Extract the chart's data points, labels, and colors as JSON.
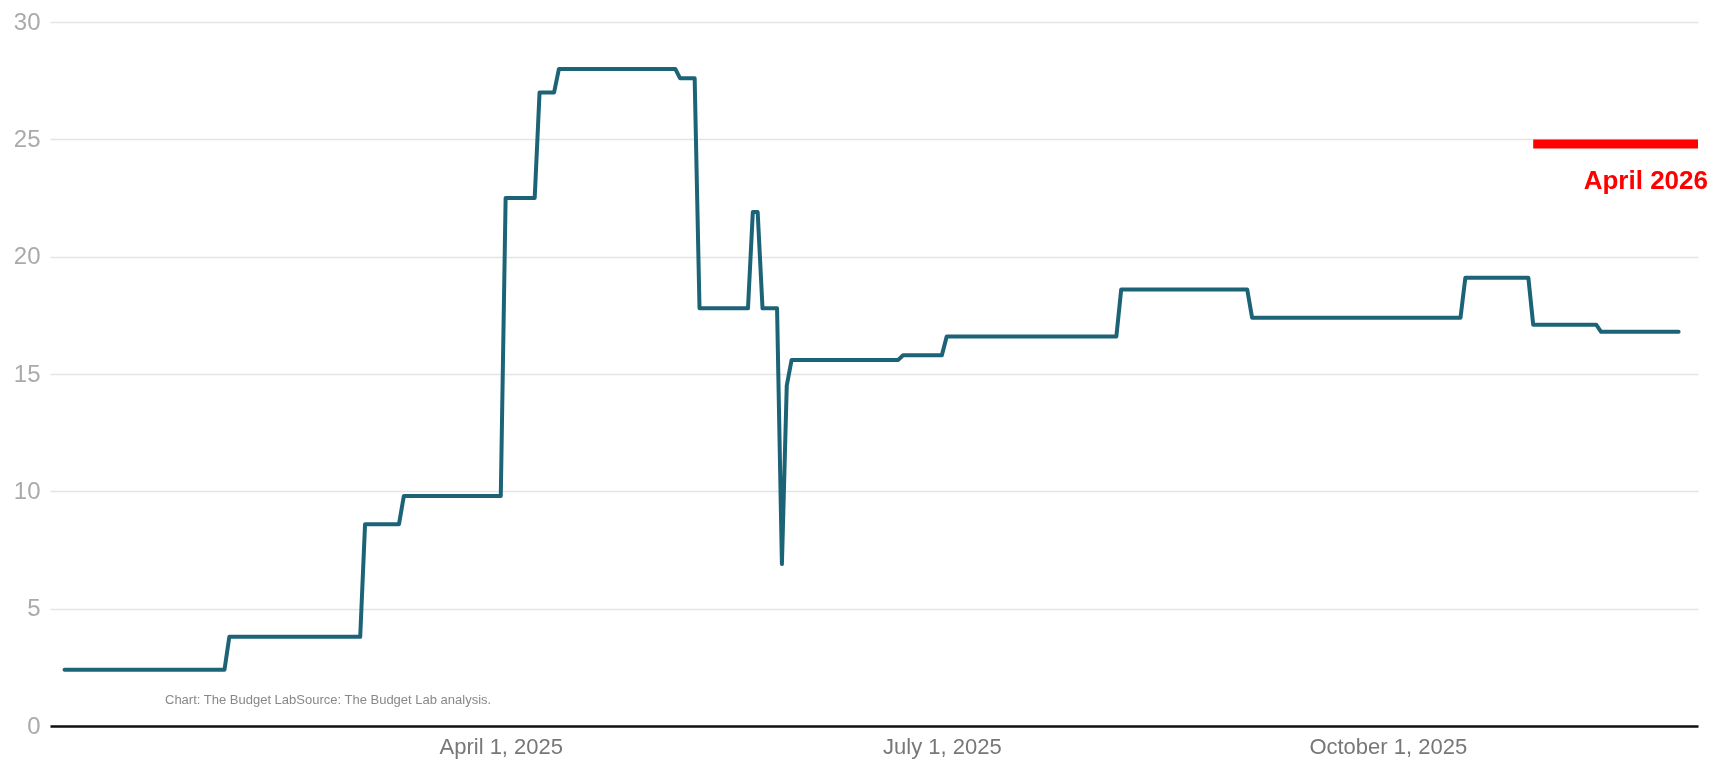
{
  "chart_data": {
    "type": "line",
    "x": [
      "2025-01-01",
      "2025-02-03",
      "2025-02-04",
      "2025-03-03",
      "2025-03-04",
      "2025-03-11",
      "2025-03-12",
      "2025-04-01",
      "2025-04-02",
      "2025-04-08",
      "2025-04-09",
      "2025-04-12",
      "2025-04-13",
      "2025-05-07",
      "2025-05-08",
      "2025-05-11",
      "2025-05-12",
      "2025-05-22",
      "2025-05-23",
      "2025-05-24",
      "2025-05-25",
      "2025-05-28",
      "2025-05-29",
      "2025-05-30",
      "2025-05-31",
      "2025-06-22",
      "2025-06-23",
      "2025-07-01",
      "2025-07-02",
      "2025-08-06",
      "2025-08-07",
      "2025-09-02",
      "2025-09-03",
      "2025-10-16",
      "2025-10-17",
      "2025-10-30",
      "2025-10-31",
      "2025-11-13",
      "2025-11-14",
      "2025-11-30"
    ],
    "series": [
      {
        "color": "#1d6378",
        "values": [
          2.4,
          2.4,
          3.8,
          3.8,
          8.6,
          8.6,
          9.8,
          9.8,
          22.5,
          22.5,
          27.0,
          27.0,
          28.0,
          28.0,
          27.6,
          27.6,
          17.8,
          17.8,
          21.9,
          21.9,
          17.8,
          17.8,
          6.9,
          14.5,
          15.6,
          15.6,
          15.8,
          15.8,
          16.6,
          16.6,
          18.6,
          18.6,
          17.4,
          17.4,
          19.1,
          19.1,
          17.1,
          17.1,
          16.8,
          16.8
        ]
      },
      {
        "name": "April 2026",
        "color": "#ff0000",
        "x": [
          "2025-10-31",
          "2025-12-04"
        ],
        "values": [
          24.8,
          24.8
        ]
      }
    ],
    "xlim": [
      "2024-12-29",
      "2025-12-04"
    ],
    "xticks": [
      {
        "value": "2025-04-01",
        "label": "April 1, 2025"
      },
      {
        "value": "2025-07-01",
        "label": "July 1, 2025"
      },
      {
        "value": "2025-10-01",
        "label": "October 1, 2025"
      }
    ],
    "ylim": [
      0,
      30
    ],
    "yticks": [
      0,
      5,
      10,
      15,
      20,
      25,
      30
    ],
    "grid": "y",
    "annotations": [
      "Chart: The Budget LabSource: The Budget Lab analysis."
    ]
  }
}
